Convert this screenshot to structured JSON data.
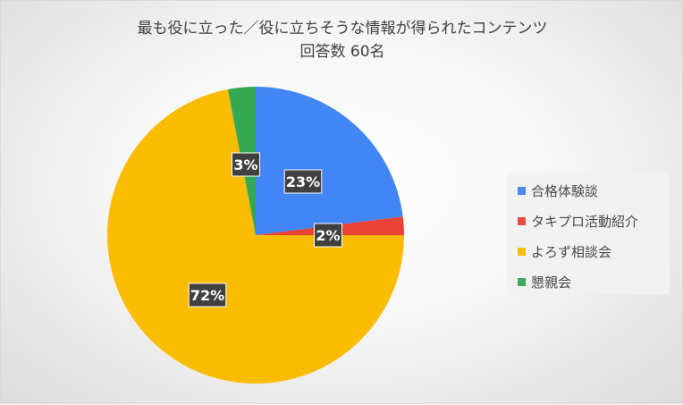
{
  "chart_data": {
    "type": "pie",
    "title": "最も役に立った／役に立ちそうな情報が得られたコンテンツ",
    "subtitle": "回答数 60名",
    "categories": [
      "合格体験談",
      "タキプロ活動紹介",
      "よろず相談会",
      "懇親会"
    ],
    "values": [
      23,
      2,
      72,
      3
    ],
    "value_labels": [
      "23%",
      "2%",
      "72%",
      "3%"
    ],
    "colors": [
      "#4285F4",
      "#EA4335",
      "#FBBC04",
      "#34A853"
    ],
    "legend_position": "right",
    "start_angle": "top (12 o'clock), clockwise"
  }
}
